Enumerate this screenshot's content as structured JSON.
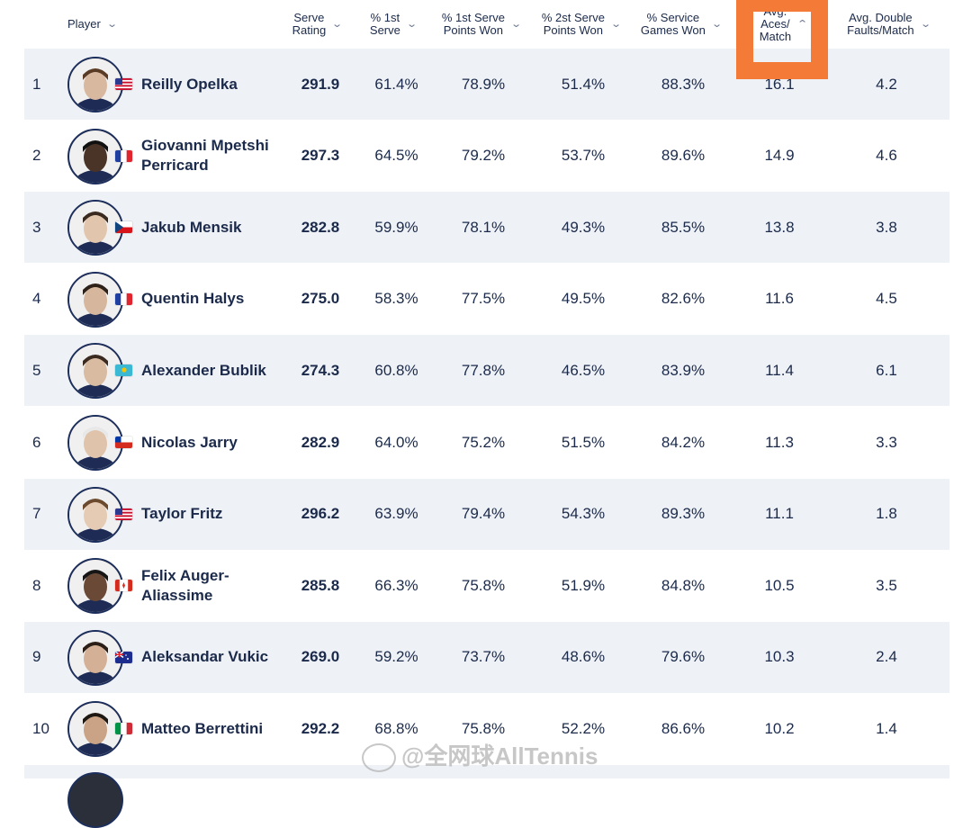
{
  "headers": [
    {
      "label": "Player",
      "chev": "⌄"
    },
    {
      "label": "Serve\nRating",
      "chev": "⌄"
    },
    {
      "label": "% 1st\nServe",
      "chev": "⌄"
    },
    {
      "label": "% 1st Serve\nPoints Won",
      "chev": "⌄"
    },
    {
      "label": "% 2st Serve\nPoints Won",
      "chev": "⌄"
    },
    {
      "label": "% Service\nGames Won",
      "chev": "⌄"
    },
    {
      "label": "Avg.\nAces/\nMatch",
      "chev": "⌃"
    },
    {
      "label": "Avg. Double\nFaults/Match",
      "chev": "⌄"
    }
  ],
  "highlight_color": "#f47a38",
  "rows": [
    {
      "rank": "1",
      "name": "Reilly Opelka",
      "flag": "USA",
      "rating": "291.9",
      "first_serve": "61.4%",
      "first_won": "78.9%",
      "second_won": "51.4%",
      "games_won": "88.3%",
      "aces": "16.1",
      "df": "4.2"
    },
    {
      "rank": "2",
      "name": "Giovanni Mpetshi Perricard",
      "flag": "FRA",
      "rating": "297.3",
      "first_serve": "64.5%",
      "first_won": "79.2%",
      "second_won": "53.7%",
      "games_won": "89.6%",
      "aces": "14.9",
      "df": "4.6"
    },
    {
      "rank": "3",
      "name": "Jakub Mensik",
      "flag": "CZE",
      "rating": "282.8",
      "first_serve": "59.9%",
      "first_won": "78.1%",
      "second_won": "49.3%",
      "games_won": "85.5%",
      "aces": "13.8",
      "df": "3.8"
    },
    {
      "rank": "4",
      "name": "Quentin Halys",
      "flag": "FRA",
      "rating": "275.0",
      "first_serve": "58.3%",
      "first_won": "77.5%",
      "second_won": "49.5%",
      "games_won": "82.6%",
      "aces": "11.6",
      "df": "4.5"
    },
    {
      "rank": "5",
      "name": "Alexander Bublik",
      "flag": "KAZ",
      "rating": "274.3",
      "first_serve": "60.8%",
      "first_won": "77.8%",
      "second_won": "46.5%",
      "games_won": "83.9%",
      "aces": "11.4",
      "df": "6.1"
    },
    {
      "rank": "6",
      "name": "Nicolas Jarry",
      "flag": "CHI",
      "rating": "282.9",
      "first_serve": "64.0%",
      "first_won": "75.2%",
      "second_won": "51.5%",
      "games_won": "84.2%",
      "aces": "11.3",
      "df": "3.3"
    },
    {
      "rank": "7",
      "name": "Taylor Fritz",
      "flag": "USA",
      "rating": "296.2",
      "first_serve": "63.9%",
      "first_won": "79.4%",
      "second_won": "54.3%",
      "games_won": "89.3%",
      "aces": "11.1",
      "df": "1.8"
    },
    {
      "rank": "8",
      "name": "Felix Auger-Aliassime",
      "flag": "CAN",
      "rating": "285.8",
      "first_serve": "66.3%",
      "first_won": "75.8%",
      "second_won": "51.9%",
      "games_won": "84.8%",
      "aces": "10.5",
      "df": "3.5"
    },
    {
      "rank": "9",
      "name": "Aleksandar Vukic",
      "flag": "AUS",
      "rating": "269.0",
      "first_serve": "59.2%",
      "first_won": "73.7%",
      "second_won": "48.6%",
      "games_won": "79.6%",
      "aces": "10.3",
      "df": "2.4"
    },
    {
      "rank": "10",
      "name": "Matteo Berrettini",
      "flag": "ITA",
      "rating": "292.2",
      "first_serve": "68.8%",
      "first_won": "75.8%",
      "second_won": "52.2%",
      "games_won": "86.6%",
      "aces": "10.2",
      "df": "1.4"
    }
  ],
  "watermark": "@全网球AllTennis"
}
